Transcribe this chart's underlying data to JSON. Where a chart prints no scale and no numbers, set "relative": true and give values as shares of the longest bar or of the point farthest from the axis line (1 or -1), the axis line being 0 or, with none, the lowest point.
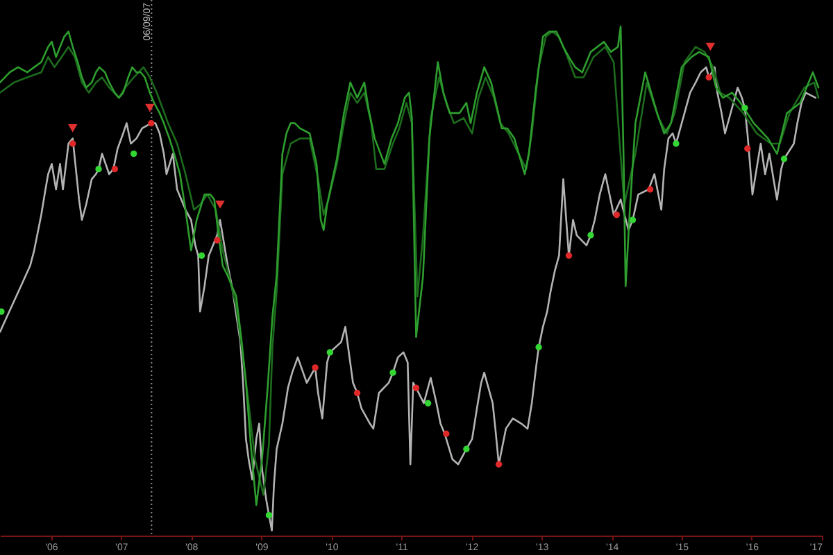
{
  "chart_data": {
    "type": "line",
    "relative": true,
    "xlim": [
      "2005-04-10",
      "2017-01-01"
    ],
    "xticks": [
      {
        "value": "2006",
        "label": "'06"
      },
      {
        "value": "2007",
        "label": "'07"
      },
      {
        "value": "2008",
        "label": "'08"
      },
      {
        "value": "2009",
        "label": "'09"
      },
      {
        "value": "2010",
        "label": "'10"
      },
      {
        "value": "2011",
        "label": "'11"
      },
      {
        "value": "2012",
        "label": "'12"
      },
      {
        "value": "2013",
        "label": "'13"
      },
      {
        "value": "2014",
        "label": "'14"
      },
      {
        "value": "2015",
        "label": "'15"
      },
      {
        "value": "2016",
        "label": "'16"
      },
      {
        "value": "2017",
        "label": "'17"
      }
    ],
    "ref_lines": [
      {
        "axis": "x",
        "value": "2007-06-09",
        "label": "06/09/07",
        "color": "#8c8c8c",
        "line_style": "dotted"
      }
    ],
    "series": [
      {
        "color": "#b4b4b4",
        "x": [
          "2005-04-10",
          "2005-05-16",
          "2005-07-28",
          "2005-09-14",
          "2005-10-05",
          "2005-11-11",
          "2005-12-03",
          "2005-12-17",
          "2006-01-05",
          "2006-01-27",
          "2006-02-17",
          "2006-03-04",
          "2006-04-02",
          "2006-04-24",
          "2006-05-27",
          "2006-06-11",
          "2006-07-03",
          "2006-08-01",
          "2006-08-23",
          "2006-09-06",
          "2006-09-24",
          "2006-10-31",
          "2006-11-22",
          "2006-12-14",
          "2007-01-12",
          "2007-01-30",
          "2007-02-21",
          "2007-03-22",
          "2007-04-21",
          "2007-06-07",
          "2007-06-29",
          "2007-07-21",
          "2007-08-12",
          "2007-08-26",
          "2007-09-28",
          "2007-10-20",
          "2007-12-03",
          "2008-01-01",
          "2008-01-23",
          "2008-02-07",
          "2008-02-17",
          "2008-03-11",
          "2008-04-02",
          "2008-05-16",
          "2008-05-31",
          "2008-07-10",
          "2008-08-01",
          "2008-09-14",
          "2008-09-28",
          "2008-10-13",
          "2008-10-27",
          "2008-11-15",
          "2008-12-06",
          "2008-12-21",
          "2009-01-05",
          "2009-01-27",
          "2009-02-10",
          "2009-02-25",
          "2009-03-08",
          "2009-03-22",
          "2009-04-21",
          "2009-05-20",
          "2009-06-11",
          "2009-07-10",
          "2009-08-26",
          "2009-10-09",
          "2009-10-24",
          "2009-11-15",
          "2009-12-10",
          "2009-12-25",
          "2010-02-21",
          "2010-03-15",
          "2010-04-24",
          "2010-05-16",
          "2010-06-07",
          "2010-07-21",
          "2010-08-08",
          "2010-09-06",
          "2010-10-27",
          "2010-11-18",
          "2010-12-14",
          "2011-01-12",
          "2011-02-03",
          "2011-02-17",
          "2011-03-04",
          "2011-03-19",
          "2011-04-28",
          "2011-06-03",
          "2011-07-03",
          "2011-07-24",
          "2011-08-15",
          "2011-09-24",
          "2011-10-24",
          "2011-12-06",
          "2012-01-05",
          "2012-01-30",
          "2012-02-21",
          "2012-03-08",
          "2012-04-21",
          "2012-05-05",
          "2012-05-23",
          "2012-06-29",
          "2012-08-04",
          "2012-09-17",
          "2012-10-20",
          "2012-11-11",
          "2012-12-03",
          "2012-12-17",
          "2013-01-08",
          "2013-01-30",
          "2013-02-17",
          "2013-03-11",
          "2013-04-02",
          "2013-04-24",
          "2013-05-23",
          "2013-06-14",
          "2013-07-03",
          "2013-08-23",
          "2013-09-14",
          "2013-10-05",
          "2013-10-31",
          "2013-11-29",
          "2013-12-21",
          "2014-01-12",
          "2014-02-17",
          "2014-03-30",
          "2014-04-21",
          "2014-05-20",
          "2014-07-13",
          "2014-08-12",
          "2014-09-17",
          "2014-10-02",
          "2014-10-24",
          "2014-11-15",
          "2014-12-03",
          "2015-01-16",
          "2015-02-14",
          "2015-03-15",
          "2015-04-10",
          "2015-05-09",
          "2015-05-23",
          "2015-06-22",
          "2015-07-06",
          "2015-07-28",
          "2015-08-15",
          "2015-09-28",
          "2015-10-20",
          "2015-11-11",
          "2015-11-26",
          "2015-12-10",
          "2015-12-21",
          "2016-01-05",
          "2016-02-17",
          "2016-03-11",
          "2016-04-02",
          "2016-04-24",
          "2016-05-12",
          "2016-06-03",
          "2016-06-18",
          "2016-08-08",
          "2016-08-26",
          "2016-09-17",
          "2016-10-09",
          "2016-11-29"
        ],
        "values": [
          0.4,
          0.43,
          0.49,
          0.53,
          0.56,
          0.63,
          0.68,
          0.71,
          0.73,
          0.68,
          0.73,
          0.68,
          0.77,
          0.78,
          0.66,
          0.62,
          0.65,
          0.7,
          0.71,
          0.72,
          0.75,
          0.71,
          0.72,
          0.76,
          0.79,
          0.81,
          0.77,
          0.78,
          0.8,
          0.81,
          0.81,
          0.79,
          0.75,
          0.71,
          0.75,
          0.68,
          0.64,
          0.62,
          0.57,
          0.55,
          0.44,
          0.49,
          0.55,
          0.59,
          0.62,
          0.53,
          0.49,
          0.38,
          0.3,
          0.19,
          0.15,
          0.11,
          0.19,
          0.22,
          0.13,
          0.07,
          0.04,
          0.01,
          0.1,
          0.17,
          0.22,
          0.29,
          0.32,
          0.35,
          0.3,
          0.33,
          0.28,
          0.23,
          0.34,
          0.36,
          0.38,
          0.41,
          0.3,
          0.28,
          0.25,
          0.22,
          0.21,
          0.28,
          0.3,
          0.32,
          0.35,
          0.36,
          0.34,
          0.14,
          0.3,
          0.29,
          0.26,
          0.31,
          0.26,
          0.22,
          0.2,
          0.15,
          0.14,
          0.17,
          0.19,
          0.25,
          0.3,
          0.32,
          0.26,
          0.21,
          0.14,
          0.21,
          0.23,
          0.22,
          0.21,
          0.26,
          0.33,
          0.37,
          0.41,
          0.44,
          0.48,
          0.52,
          0.55,
          0.7,
          0.55,
          0.62,
          0.59,
          0.57,
          0.59,
          0.62,
          0.67,
          0.71,
          0.67,
          0.63,
          0.66,
          0.6,
          0.62,
          0.67,
          0.68,
          0.71,
          0.64,
          0.72,
          0.78,
          0.79,
          0.77,
          0.83,
          0.87,
          0.89,
          0.91,
          0.92,
          0.9,
          0.92,
          0.87,
          0.83,
          0.79,
          0.85,
          0.88,
          0.86,
          0.84,
          0.79,
          0.74,
          0.67,
          0.77,
          0.71,
          0.75,
          0.7,
          0.66,
          0.72,
          0.74,
          0.77,
          0.81,
          0.85,
          0.87,
          0.86
        ]
      },
      {
        "color": "#1d6b1d",
        "x": [
          "2005-04-10",
          "2005-06-22",
          "2005-08-30",
          "2005-11-11",
          "2005-12-17",
          "2006-01-19",
          "2006-02-25",
          "2006-04-02",
          "2006-05-05",
          "2006-06-11",
          "2006-07-17",
          "2006-08-23",
          "2006-09-24",
          "2006-10-31",
          "2006-12-21",
          "2007-01-23",
          "2007-03-08",
          "2007-04-28",
          "2007-05-31",
          "2007-07-06",
          "2007-09-03",
          "2007-10-20",
          "2007-12-03",
          "2008-01-16",
          "2008-02-17",
          "2008-03-26",
          "2008-05-09",
          "2008-06-14",
          "2008-07-17",
          "2008-08-23",
          "2008-09-21",
          "2008-10-27",
          "2008-11-29",
          "2009-01-12",
          "2009-02-10",
          "2009-02-28",
          "2009-03-22",
          "2009-04-21",
          "2009-06-03",
          "2009-07-21",
          "2009-09-10",
          "2009-10-24",
          "2009-11-22",
          "2009-12-17",
          "2010-01-30",
          "2010-03-08",
          "2010-04-10",
          "2010-05-16",
          "2010-06-22",
          "2010-07-28",
          "2010-08-23",
          "2010-10-05",
          "2010-11-18",
          "2010-12-21",
          "2011-01-27",
          "2011-02-25",
          "2011-03-26",
          "2011-04-24",
          "2011-06-03",
          "2011-07-17",
          "2011-08-23",
          "2011-10-02",
          "2011-11-22",
          "2012-01-05",
          "2012-02-07",
          "2012-03-15",
          "2012-04-28",
          "2012-05-31",
          "2012-07-13",
          "2012-09-03",
          "2012-10-13",
          "2012-11-11",
          "2012-12-17",
          "2013-01-23",
          "2013-02-25",
          "2013-04-02",
          "2013-05-16",
          "2013-06-25",
          "2013-08-08",
          "2013-09-28",
          "2013-11-29",
          "2014-01-12",
          "2014-03-08",
          "2014-05-05",
          "2014-07-03",
          "2014-09-03",
          "2014-10-16",
          "2014-11-26",
          "2015-01-16",
          "2015-03-15",
          "2015-05-01",
          "2015-06-14",
          "2015-07-21",
          "2015-09-06",
          "2015-11-18",
          "2016-01-27",
          "2016-04-10",
          "2016-05-27",
          "2016-07-17",
          "2016-10-02",
          "2016-11-22",
          "2016-12-14"
        ],
        "values": [
          0.87,
          0.89,
          0.9,
          0.91,
          0.94,
          0.92,
          0.94,
          0.96,
          0.94,
          0.89,
          0.87,
          0.89,
          0.9,
          0.88,
          0.86,
          0.88,
          0.9,
          0.92,
          0.9,
          0.87,
          0.81,
          0.77,
          0.71,
          0.64,
          0.65,
          0.67,
          0.64,
          0.56,
          0.51,
          0.45,
          0.37,
          0.26,
          0.15,
          0.08,
          0.18,
          0.37,
          0.48,
          0.71,
          0.77,
          0.78,
          0.78,
          0.7,
          0.63,
          0.66,
          0.73,
          0.81,
          0.87,
          0.85,
          0.87,
          0.81,
          0.72,
          0.72,
          0.77,
          0.8,
          0.85,
          0.81,
          0.47,
          0.59,
          0.82,
          0.9,
          0.85,
          0.81,
          0.82,
          0.79,
          0.86,
          0.9,
          0.86,
          0.81,
          0.79,
          0.75,
          0.72,
          0.79,
          0.92,
          0.98,
          0.99,
          0.98,
          0.94,
          0.9,
          0.9,
          0.94,
          0.96,
          0.93,
          0.65,
          0.75,
          0.89,
          0.82,
          0.79,
          0.83,
          0.93,
          0.96,
          0.95,
          0.92,
          0.87,
          0.86,
          0.83,
          0.79,
          0.77,
          0.77,
          0.83,
          0.88,
          0.89,
          0.86
        ]
      },
      {
        "color": "#2e9e2e",
        "x": [
          "2005-04-10",
          "2005-05-31",
          "2005-07-13",
          "2005-08-30",
          "2005-10-05",
          "2005-11-11",
          "2005-12-17",
          "2006-01-05",
          "2006-01-27",
          "2006-02-17",
          "2006-03-11",
          "2006-04-02",
          "2006-04-24",
          "2006-05-20",
          "2006-06-11",
          "2006-07-03",
          "2006-08-01",
          "2006-08-23",
          "2006-09-10",
          "2006-10-09",
          "2006-10-31",
          "2006-11-29",
          "2006-12-21",
          "2007-01-12",
          "2007-02-07",
          "2007-02-28",
          "2007-03-22",
          "2007-04-13",
          "2007-05-05",
          "2007-05-31",
          "2007-06-22",
          "2007-07-21",
          "2007-08-12",
          "2007-09-10",
          "2007-10-05",
          "2007-11-04",
          "2007-12-03",
          "2008-01-01",
          "2008-01-30",
          "2008-03-11",
          "2008-04-10",
          "2008-05-01",
          "2008-05-23",
          "2008-06-14",
          "2008-07-10",
          "2008-08-01",
          "2008-08-23",
          "2008-09-21",
          "2008-10-13",
          "2008-11-07",
          "2008-12-06",
          "2009-01-05",
          "2009-02-03",
          "2009-02-28",
          "2009-03-22",
          "2009-04-21",
          "2009-05-12",
          "2009-06-03",
          "2009-06-25",
          "2009-07-21",
          "2009-09-10",
          "2009-10-16",
          "2009-11-07",
          "2009-11-22",
          "2009-12-10",
          "2010-01-30",
          "2010-03-08",
          "2010-04-10",
          "2010-05-16",
          "2010-06-22",
          "2010-07-13",
          "2010-08-15",
          "2010-10-05",
          "2010-11-11",
          "2010-12-14",
          "2011-01-19",
          "2011-02-10",
          "2011-02-25",
          "2011-03-19",
          "2011-04-24",
          "2011-05-27",
          "2011-07-10",
          "2011-08-08",
          "2011-09-10",
          "2011-10-31",
          "2011-12-06",
          "2011-12-28",
          "2012-01-30",
          "2012-03-08",
          "2012-04-13",
          "2012-05-20",
          "2012-06-07",
          "2012-07-06",
          "2012-08-12",
          "2012-10-05",
          "2012-10-27",
          "2012-12-03",
          "2013-01-08",
          "2013-02-10",
          "2013-03-19",
          "2013-04-24",
          "2013-05-23",
          "2013-06-25",
          "2013-08-01",
          "2013-09-14",
          "2013-11-22",
          "2013-12-28",
          "2014-02-03",
          "2014-02-17",
          "2014-03-04",
          "2014-03-15",
          "2014-04-06",
          "2014-05-05",
          "2014-06-25",
          "2014-08-26",
          "2014-10-02",
          "2014-11-07",
          "2015-01-01",
          "2015-02-21",
          "2015-04-02",
          "2015-05-23",
          "2015-06-29",
          "2015-08-04",
          "2015-09-21",
          "2015-11-04",
          "2016-01-12",
          "2016-03-26",
          "2016-05-12",
          "2016-07-03",
          "2016-09-10",
          "2016-11-15",
          "2016-12-14"
        ],
        "values": [
          0.89,
          0.91,
          0.92,
          0.91,
          0.92,
          0.93,
          0.96,
          0.97,
          0.94,
          0.96,
          0.98,
          0.99,
          0.96,
          0.93,
          0.9,
          0.88,
          0.89,
          0.91,
          0.92,
          0.91,
          0.89,
          0.87,
          0.86,
          0.87,
          0.9,
          0.92,
          0.91,
          0.91,
          0.9,
          0.87,
          0.85,
          0.83,
          0.81,
          0.78,
          0.75,
          0.71,
          0.64,
          0.56,
          0.62,
          0.67,
          0.67,
          0.66,
          0.59,
          0.53,
          0.51,
          0.49,
          0.47,
          0.38,
          0.3,
          0.18,
          0.06,
          0.15,
          0.29,
          0.43,
          0.51,
          0.75,
          0.79,
          0.81,
          0.81,
          0.8,
          0.79,
          0.73,
          0.62,
          0.6,
          0.65,
          0.74,
          0.83,
          0.89,
          0.86,
          0.89,
          0.84,
          0.78,
          0.73,
          0.78,
          0.81,
          0.86,
          0.87,
          0.82,
          0.39,
          0.51,
          0.78,
          0.93,
          0.87,
          0.83,
          0.83,
          0.85,
          0.81,
          0.87,
          0.92,
          0.89,
          0.83,
          0.8,
          0.8,
          0.78,
          0.71,
          0.75,
          0.88,
          0.98,
          0.99,
          0.99,
          0.96,
          0.94,
          0.92,
          0.91,
          0.95,
          0.97,
          0.95,
          0.96,
          1,
          0.75,
          0.49,
          0.64,
          0.81,
          0.91,
          0.83,
          0.79,
          0.81,
          0.92,
          0.94,
          0.95,
          0.94,
          0.88,
          0.86,
          0.87,
          0.85,
          0.81,
          0.78,
          0.75,
          0.83,
          0.85,
          0.91,
          0.88
        ]
      },
      {
        "type": "scatter",
        "color": "#e02828",
        "marker": "circle",
        "x": [
          "2006-04-24",
          "2006-11-29",
          "2007-06-07",
          "2008-05-16",
          "2009-10-09",
          "2010-05-16",
          "2011-03-19",
          "2011-08-23",
          "2012-05-23",
          "2013-05-23",
          "2014-01-27",
          "2014-07-21",
          "2015-05-23",
          "2015-12-10"
        ],
        "values": [
          0.77,
          0.72,
          0.81,
          0.58,
          0.33,
          0.28,
          0.29,
          0.2,
          0.14,
          0.55,
          0.63,
          0.68,
          0.9,
          0.76
        ]
      },
      {
        "type": "scatter",
        "color": "#33d633",
        "marker": "circle",
        "x": [
          "2005-04-17",
          "2006-09-06",
          "2007-03-08",
          "2008-02-25",
          "2009-02-10",
          "2009-12-25",
          "2010-11-18",
          "2011-05-20",
          "2011-12-06",
          "2012-12-17",
          "2013-09-14",
          "2014-04-21",
          "2014-12-03",
          "2015-11-26",
          "2016-06-18"
        ],
        "values": [
          0.44,
          0.72,
          0.75,
          0.55,
          0.04,
          0.36,
          0.32,
          0.26,
          0.17,
          0.37,
          0.59,
          0.62,
          0.77,
          0.84,
          0.74
        ]
      },
      {
        "type": "scatter",
        "color": "#e03030",
        "marker": "triangle",
        "x": [
          "2006-04-24",
          "2007-05-31",
          "2008-05-31",
          "2015-05-31"
        ],
        "values": [
          0.8,
          0.84,
          0.65,
          0.96
        ]
      }
    ]
  }
}
